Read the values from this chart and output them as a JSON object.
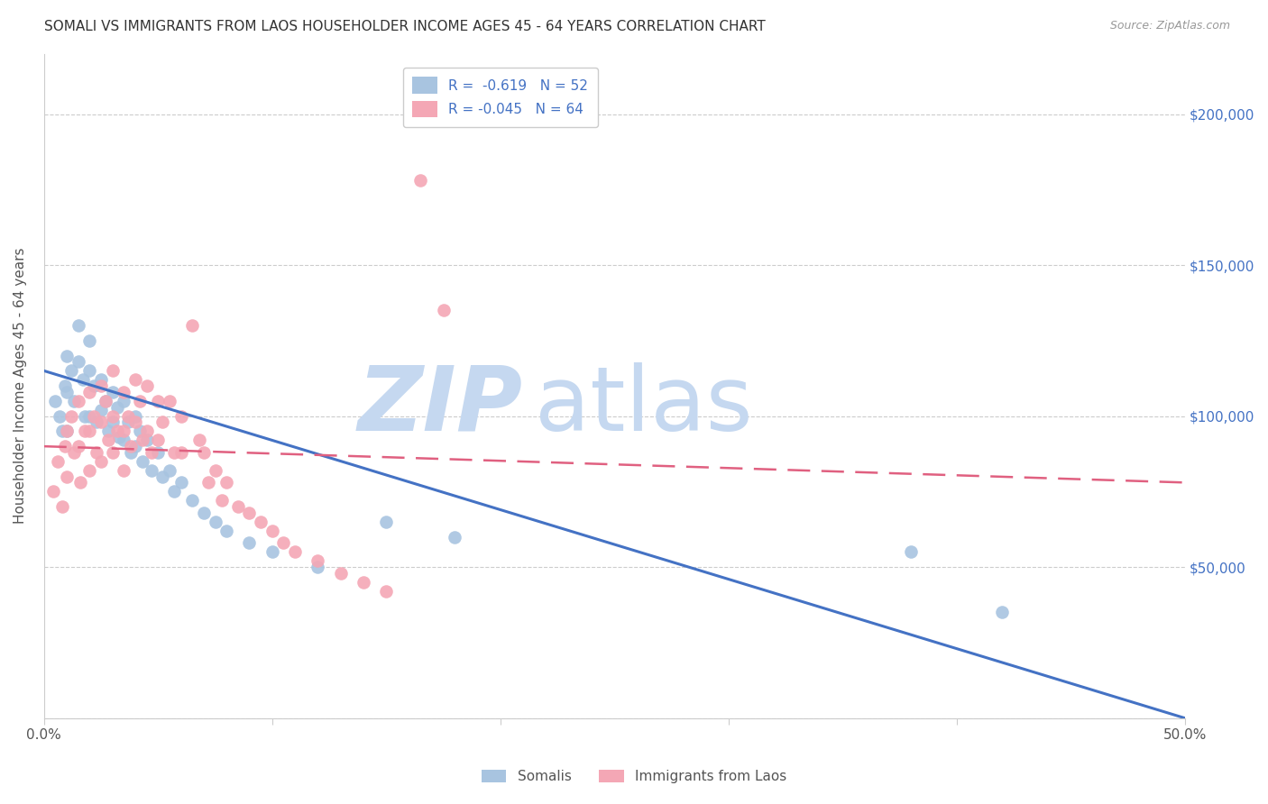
{
  "title": "SOMALI VS IMMIGRANTS FROM LAOS HOUSEHOLDER INCOME AGES 45 - 64 YEARS CORRELATION CHART",
  "source": "Source: ZipAtlas.com",
  "ylabel": "Householder Income Ages 45 - 64 years",
  "xlim": [
    0.0,
    0.5
  ],
  "ylim": [
    0,
    220000
  ],
  "somali_R": -0.619,
  "somali_N": 52,
  "laos_R": -0.045,
  "laos_N": 64,
  "somali_color": "#a8c4e0",
  "laos_color": "#f4a7b5",
  "somali_line_color": "#4472c4",
  "laos_line_color": "#e06080",
  "background_color": "#ffffff",
  "somali_x": [
    0.005,
    0.007,
    0.008,
    0.009,
    0.01,
    0.01,
    0.01,
    0.012,
    0.013,
    0.015,
    0.015,
    0.017,
    0.018,
    0.02,
    0.02,
    0.02,
    0.022,
    0.023,
    0.025,
    0.025,
    0.027,
    0.028,
    0.03,
    0.03,
    0.032,
    0.033,
    0.035,
    0.035,
    0.037,
    0.038,
    0.04,
    0.04,
    0.042,
    0.043,
    0.045,
    0.047,
    0.05,
    0.052,
    0.055,
    0.057,
    0.06,
    0.065,
    0.07,
    0.075,
    0.08,
    0.09,
    0.1,
    0.12,
    0.15,
    0.18,
    0.38,
    0.42
  ],
  "somali_y": [
    105000,
    100000,
    95000,
    110000,
    120000,
    108000,
    95000,
    115000,
    105000,
    130000,
    118000,
    112000,
    100000,
    125000,
    115000,
    100000,
    110000,
    98000,
    112000,
    102000,
    105000,
    95000,
    108000,
    98000,
    103000,
    93000,
    105000,
    92000,
    98000,
    88000,
    100000,
    90000,
    95000,
    85000,
    92000,
    82000,
    88000,
    80000,
    82000,
    75000,
    78000,
    72000,
    68000,
    65000,
    62000,
    58000,
    55000,
    50000,
    65000,
    60000,
    55000,
    35000
  ],
  "laos_x": [
    0.004,
    0.006,
    0.008,
    0.009,
    0.01,
    0.01,
    0.012,
    0.013,
    0.015,
    0.015,
    0.016,
    0.018,
    0.02,
    0.02,
    0.02,
    0.022,
    0.023,
    0.025,
    0.025,
    0.025,
    0.027,
    0.028,
    0.03,
    0.03,
    0.03,
    0.032,
    0.035,
    0.035,
    0.035,
    0.037,
    0.038,
    0.04,
    0.04,
    0.042,
    0.043,
    0.045,
    0.045,
    0.047,
    0.05,
    0.05,
    0.052,
    0.055,
    0.057,
    0.06,
    0.06,
    0.065,
    0.068,
    0.07,
    0.072,
    0.075,
    0.078,
    0.08,
    0.085,
    0.09,
    0.095,
    0.1,
    0.105,
    0.11,
    0.12,
    0.13,
    0.14,
    0.15,
    0.165,
    0.175
  ],
  "laos_y": [
    75000,
    85000,
    70000,
    90000,
    95000,
    80000,
    100000,
    88000,
    105000,
    90000,
    78000,
    95000,
    108000,
    95000,
    82000,
    100000,
    88000,
    110000,
    98000,
    85000,
    105000,
    92000,
    115000,
    100000,
    88000,
    95000,
    108000,
    95000,
    82000,
    100000,
    90000,
    112000,
    98000,
    105000,
    92000,
    110000,
    95000,
    88000,
    105000,
    92000,
    98000,
    105000,
    88000,
    100000,
    88000,
    130000,
    92000,
    88000,
    78000,
    82000,
    72000,
    78000,
    70000,
    68000,
    65000,
    62000,
    58000,
    55000,
    52000,
    48000,
    45000,
    42000,
    178000,
    135000
  ]
}
